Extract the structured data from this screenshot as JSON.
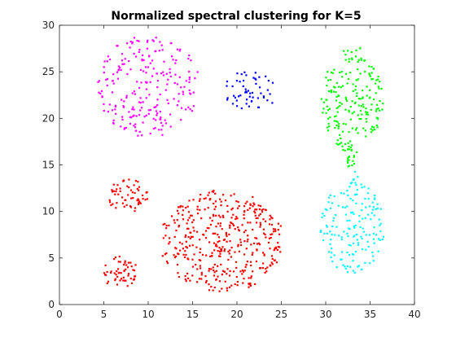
{
  "chart_data": {
    "type": "scatter",
    "title": "Normalized spectral clustering for K=5",
    "xlabel": "",
    "ylabel": "",
    "xlim": [
      0,
      40
    ],
    "ylim": [
      0,
      30
    ],
    "xticks": [
      "0",
      "5",
      "10",
      "15",
      "20",
      "25",
      "30",
      "35",
      "40"
    ],
    "yticks": [
      "0",
      "5",
      "10",
      "15",
      "20",
      "25",
      "30"
    ],
    "grid": false,
    "legend": "none",
    "series": [
      {
        "color": "#ff00ff",
        "regions": [
          {
            "shape": "ellipse",
            "cx": 10.0,
            "cy": 23.5,
            "rx": 5.8,
            "ry": 5.5,
            "n": 230
          }
        ]
      },
      {
        "color": "#0000ff",
        "regions": [
          {
            "shape": "ellipse",
            "cx": 21.5,
            "cy": 23.0,
            "rx": 3.2,
            "ry": 2.1,
            "n": 55
          }
        ]
      },
      {
        "color": "#00ff00",
        "regions": [
          {
            "shape": "ellipse",
            "cx": 33.0,
            "cy": 22.0,
            "rx": 3.5,
            "ry": 5.8,
            "n": 200
          },
          {
            "shape": "ellipse",
            "cx": 32.8,
            "cy": 15.8,
            "rx": 0.5,
            "ry": 1.4,
            "n": 18
          }
        ]
      },
      {
        "color": "#ff0000",
        "regions": [
          {
            "shape": "ellipse",
            "cx": 7.7,
            "cy": 11.7,
            "rx": 2.3,
            "ry": 1.9,
            "n": 60
          },
          {
            "shape": "ellipse",
            "cx": 6.8,
            "cy": 3.5,
            "rx": 2.1,
            "ry": 1.7,
            "n": 55
          },
          {
            "shape": "ellipse",
            "cx": 18.3,
            "cy": 6.8,
            "rx": 7.0,
            "ry": 5.5,
            "n": 420
          }
        ]
      },
      {
        "color": "#00ffff",
        "regions": [
          {
            "shape": "ellipse",
            "cx": 33.0,
            "cy": 8.3,
            "rx": 3.6,
            "ry": 4.9,
            "n": 160
          },
          {
            "shape": "ellipse",
            "cx": 33.3,
            "cy": 13.4,
            "rx": 0.4,
            "ry": 0.9,
            "n": 6
          }
        ]
      }
    ]
  }
}
